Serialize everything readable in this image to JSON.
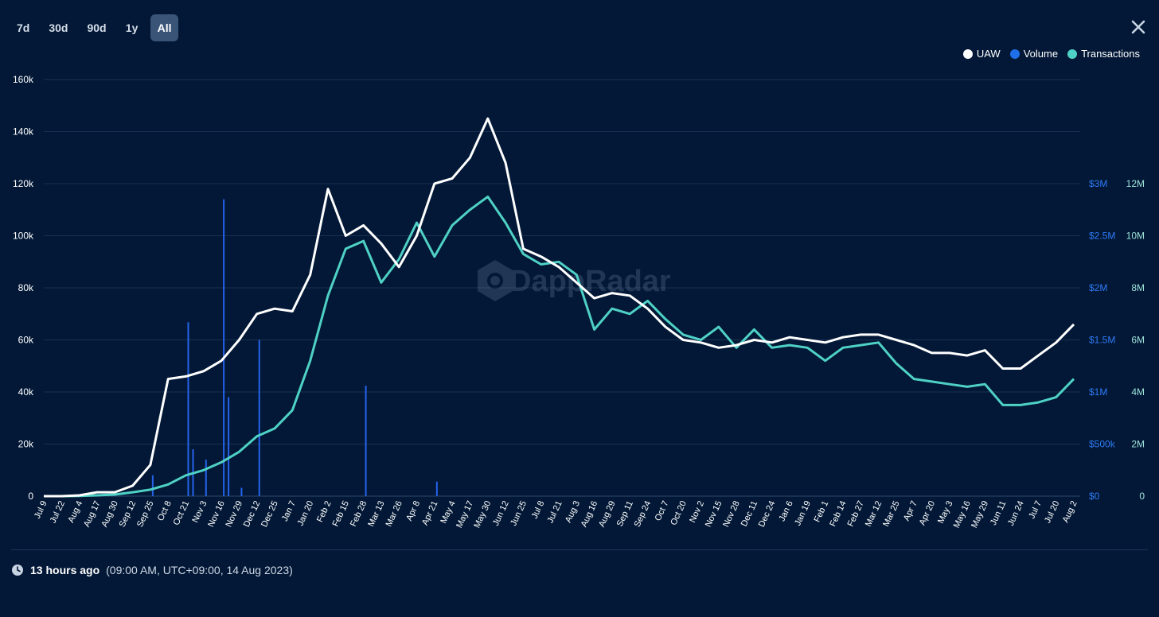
{
  "toolbar": {
    "tabs": [
      {
        "label": "7d",
        "active": false
      },
      {
        "label": "30d",
        "active": false
      },
      {
        "label": "90d",
        "active": false
      },
      {
        "label": "1y",
        "active": false
      },
      {
        "label": "All",
        "active": true
      }
    ],
    "close_icon": "close-icon"
  },
  "legend": [
    {
      "label": "UAW",
      "color": "#ffffff"
    },
    {
      "label": "Volume",
      "color": "#1f6feb"
    },
    {
      "label": "Transactions",
      "color": "#4fd1c5"
    }
  ],
  "watermark": "DappRadar",
  "footer": {
    "icon": "clock-icon",
    "relative": "13 hours ago",
    "absolute": "(09:00 AM, UTC+09:00, 14 Aug 2023)"
  },
  "chart_data": {
    "type": "line",
    "grid": true,
    "x_labels": [
      "Jul 9",
      "Jul 22",
      "Aug 4",
      "Aug 17",
      "Aug 30",
      "Sep 12",
      "Sep 25",
      "Oct 8",
      "Oct 21",
      "Nov 3",
      "Nov 16",
      "Nov 29",
      "Dec 12",
      "Dec 25",
      "Jan 7",
      "Jan 20",
      "Feb 2",
      "Feb 15",
      "Feb 28",
      "Mar 13",
      "Mar 26",
      "Apr 8",
      "Apr 21",
      "May 4",
      "May 17",
      "May 30",
      "Jun 12",
      "Jun 25",
      "Jul 8",
      "Jul 21",
      "Aug 3",
      "Aug 16",
      "Aug 29",
      "Sep 11",
      "Sep 24",
      "Oct 7",
      "Oct 20",
      "Nov 2",
      "Nov 15",
      "Nov 28",
      "Dec 11",
      "Dec 24",
      "Jan 6",
      "Jan 19",
      "Feb 1",
      "Feb 14",
      "Feb 27",
      "Mar 12",
      "Mar 25",
      "Apr 7",
      "Apr 20",
      "May 3",
      "May 16",
      "May 29",
      "Jun 11",
      "Jun 24",
      "Jul 7",
      "Jul 20",
      "Aug 2"
    ],
    "y_left": {
      "label": "UAW",
      "ticks": [
        "0",
        "20k",
        "40k",
        "60k",
        "80k",
        "100k",
        "120k",
        "140k",
        "160k"
      ],
      "min": 0,
      "max": 160000
    },
    "y_right_volume": {
      "label": "Volume",
      "ticks": [
        "$0",
        "$500k",
        "$1M",
        "$1.5M",
        "$2M",
        "$2.5M",
        "$3M"
      ],
      "min": 0,
      "max": 3000000
    },
    "y_right_tx": {
      "label": "Transactions",
      "ticks": [
        "0",
        "2M",
        "4M",
        "6M",
        "8M",
        "10M",
        "12M"
      ],
      "min": 0,
      "max": 12000000
    },
    "series": [
      {
        "name": "UAW",
        "axis": "left",
        "color": "#ffffff",
        "values": [
          0,
          0,
          300,
          1500,
          1500,
          4000,
          12000,
          45000,
          46000,
          48000,
          52000,
          60000,
          70000,
          72000,
          71000,
          85000,
          118000,
          100000,
          104000,
          97000,
          88000,
          100000,
          120000,
          122000,
          130000,
          145000,
          128000,
          95000,
          92000,
          88000,
          82000,
          76000,
          78000,
          77000,
          72000,
          65000,
          60000,
          59000,
          57000,
          58000,
          60000,
          59000,
          61000,
          60000,
          59000,
          61000,
          62000,
          62000,
          60000,
          58000,
          55000,
          55000,
          54000,
          56000,
          49000,
          49000,
          54000,
          59000,
          66000
        ]
      },
      {
        "name": "Volume",
        "axis": "right_volume",
        "color": "#1f6feb",
        "bars": [
          {
            "x": "Sep 25",
            "value": 200000
          },
          {
            "x": "Oct 21",
            "value": 1670000
          },
          {
            "x": "Oct 21",
            "value": 450000
          },
          {
            "x": "Nov 3",
            "value": 350000
          },
          {
            "x": "Nov 16",
            "value": 2850000
          },
          {
            "x": "Nov 16",
            "value": 950000
          },
          {
            "x": "Nov 29",
            "value": 80000
          },
          {
            "x": "Dec 12",
            "value": 1500000
          },
          {
            "x": "Feb 28",
            "value": 1060000
          },
          {
            "x": "Apr 21",
            "value": 140000
          }
        ]
      },
      {
        "name": "Transactions",
        "axis": "right_tx",
        "color": "#4fd1c5",
        "values": [
          0,
          0,
          10000,
          30000,
          60000,
          150000,
          250000,
          450000,
          800000,
          1000000,
          1300000,
          1700000,
          2300000,
          2600000,
          3300000,
          5200000,
          7700000,
          9500000,
          9800000,
          8200000,
          9100000,
          10500000,
          9200000,
          10400000,
          11000000,
          11500000,
          10500000,
          9300000,
          8900000,
          9000000,
          8500000,
          6400000,
          7200000,
          7000000,
          7500000,
          6800000,
          6200000,
          6000000,
          6500000,
          5700000,
          6400000,
          5700000,
          5800000,
          5700000,
          5200000,
          5700000,
          5800000,
          5900000,
          5100000,
          4500000,
          4400000,
          4300000,
          4200000,
          4300000,
          3500000,
          3500000,
          3600000,
          3800000,
          4500000
        ]
      }
    ]
  }
}
